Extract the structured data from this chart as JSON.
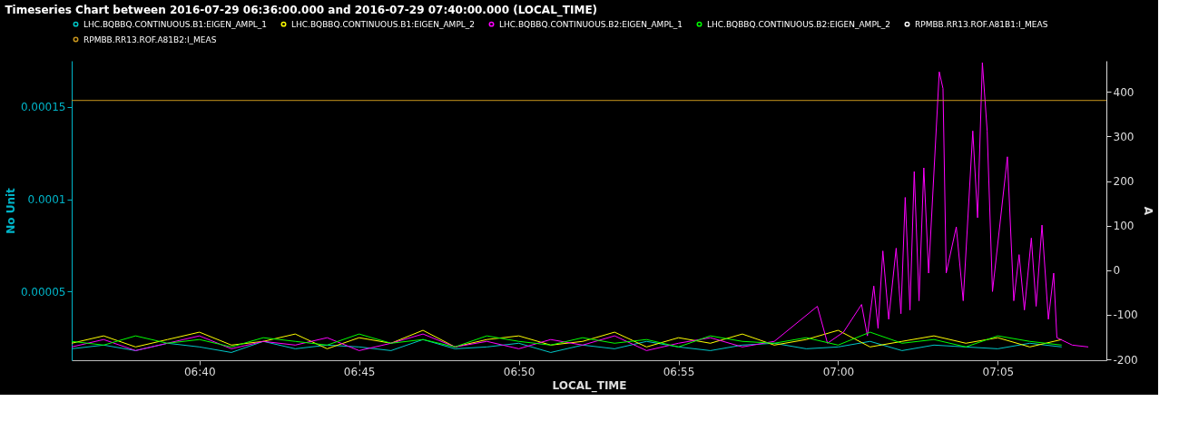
{
  "chart_data": {
    "type": "line",
    "title": "Timeseries Chart between 2016-07-29 06:36:00.000 and 2016-07-29 07:40:00.000 (LOCAL_TIME)",
    "xlabel": "LOCAL_TIME",
    "ylabel": "No Unit",
    "y2label": "A",
    "x": [
      "2016-07-29T06:36",
      "2016-07-29T06:37",
      "2016-07-29T06:38",
      "2016-07-29T06:39",
      "2016-07-29T06:40",
      "2016-07-29T06:41",
      "2016-07-29T06:42",
      "2016-07-29T06:43",
      "2016-07-29T06:44",
      "2016-07-29T06:45",
      "2016-07-29T06:46",
      "2016-07-29T06:47",
      "2016-07-29T06:48",
      "2016-07-29T06:49",
      "2016-07-29T06:50",
      "2016-07-29T06:51",
      "2016-07-29T06:52",
      "2016-07-29T06:53",
      "2016-07-29T06:54",
      "2016-07-29T06:55",
      "2016-07-29T06:56",
      "2016-07-29T06:57",
      "2016-07-29T06:58",
      "2016-07-29T06:59",
      "2016-07-29T07:00",
      "2016-07-29T07:01",
      "2016-07-29T07:02",
      "2016-07-29T07:03",
      "2016-07-29T07:04",
      "2016-07-29T07:05",
      "2016-07-29T07:06",
      "2016-07-29T07:07"
    ],
    "series": [
      {
        "name": "LHC.BQBBQ.CONTINUOUS.B1:EIGEN_AMPL_1",
        "color": "#00c8c8",
        "values": [
          1.9e-05,
          2.1e-05,
          1.8e-05,
          2.2e-05,
          2e-05,
          1.7e-05,
          2.3e-05,
          1.9e-05,
          2.1e-05,
          2e-05,
          1.8e-05,
          2.4e-05,
          1.9e-05,
          2e-05,
          2.2e-05,
          1.7e-05,
          2.1e-05,
          1.9e-05,
          2.3e-05,
          2e-05,
          1.8e-05,
          2.1e-05,
          2.2e-05,
          1.9e-05,
          2e-05,
          2.3e-05,
          1.8e-05,
          2.1e-05,
          2e-05,
          1.9e-05,
          2.2e-05,
          2e-05
        ]
      },
      {
        "name": "LHC.BQBBQ.CONTINUOUS.B1:EIGEN_AMPL_2",
        "color": "#ffff00",
        "values": [
          2.2e-05,
          2.6e-05,
          2e-05,
          2.4e-05,
          2.8e-05,
          2.1e-05,
          2.3e-05,
          2.7e-05,
          1.9e-05,
          2.5e-05,
          2.2e-05,
          2.9e-05,
          2e-05,
          2.4e-05,
          2.6e-05,
          2.1e-05,
          2.3e-05,
          2.8e-05,
          2e-05,
          2.5e-05,
          2.2e-05,
          2.7e-05,
          2.1e-05,
          2.4e-05,
          2.9e-05,
          2e-05,
          2.3e-05,
          2.6e-05,
          2.2e-05,
          2.5e-05,
          2e-05,
          2.4e-05
        ]
      },
      {
        "name": "LHC.BQBBQ.CONTINUOUS.B2:EIGEN_AMPL_1",
        "color": "#ff00ff",
        "x": [
          "2016-07-29T06:36",
          "2016-07-29T06:37",
          "2016-07-29T06:38",
          "2016-07-29T06:39",
          "2016-07-29T06:40",
          "2016-07-29T06:41",
          "2016-07-29T06:42",
          "2016-07-29T06:43",
          "2016-07-29T06:44",
          "2016-07-29T06:45",
          "2016-07-29T06:46",
          "2016-07-29T06:47",
          "2016-07-29T06:48",
          "2016-07-29T06:49",
          "2016-07-29T06:50",
          "2016-07-29T06:51",
          "2016-07-29T06:52",
          "2016-07-29T06:53",
          "2016-07-29T06:54",
          "2016-07-29T06:55",
          "2016-07-29T06:56",
          "2016-07-29T06:57",
          "2016-07-29T06:58",
          "2016-07-29T06:59:21",
          "2016-07-29T06:59:40",
          "2016-07-29T07:00:10",
          "2016-07-29T07:00:44",
          "2016-07-29T07:00:55",
          "2016-07-29T07:01:07",
          "2016-07-29T07:01:15",
          "2016-07-29T07:01:24",
          "2016-07-29T07:01:35",
          "2016-07-29T07:01:49",
          "2016-07-29T07:01:58",
          "2016-07-29T07:02:06",
          "2016-07-29T07:02:15",
          "2016-07-29T07:02:23",
          "2016-07-29T07:02:32",
          "2016-07-29T07:02:41",
          "2016-07-29T07:02:50",
          "2016-07-29T07:03:10",
          "2016-07-29T07:03:17",
          "2016-07-29T07:03:23",
          "2016-07-29T07:03:42",
          "2016-07-29T07:03:55",
          "2016-07-29T07:04:13",
          "2016-07-29T07:04:22",
          "2016-07-29T07:04:31",
          "2016-07-29T07:04:40",
          "2016-07-29T07:04:50",
          "2016-07-29T07:05:18",
          "2016-07-29T07:05:30",
          "2016-07-29T07:05:40",
          "2016-07-29T07:05:50",
          "2016-07-29T07:06:03",
          "2016-07-29T07:06:12",
          "2016-07-29T07:06:23",
          "2016-07-29T07:06:35",
          "2016-07-29T07:06:45",
          "2016-07-29T07:06:51",
          "2016-07-29T07:07:20",
          "2016-07-29T07:07:50"
        ],
        "values": [
          2e-05,
          2.4e-05,
          1.8e-05,
          2.2e-05,
          2.6e-05,
          1.9e-05,
          2.3e-05,
          2.1e-05,
          2.5e-05,
          1.8e-05,
          2.2e-05,
          2.7e-05,
          2e-05,
          2.3e-05,
          1.9e-05,
          2.4e-05,
          2.1e-05,
          2.6e-05,
          1.8e-05,
          2.2e-05,
          2.5e-05,
          2e-05,
          2.3e-05,
          4.2e-05,
          2.2e-05,
          2.8e-05,
          4.3e-05,
          2.6e-05,
          5.3e-05,
          3e-05,
          7.2e-05,
          3.5e-05,
          7.35e-05,
          3.8e-05,
          0.000101,
          4e-05,
          0.000115,
          4.5e-05,
          0.000117,
          6e-05,
          0.000169,
          0.00016,
          6e-05,
          8.5e-05,
          4.5e-05,
          0.000137,
          9e-05,
          0.000174,
          0.000137,
          5e-05,
          0.000123,
          4.5e-05,
          7e-05,
          4e-05,
          7.9e-05,
          4.2e-05,
          8.6e-05,
          3.5e-05,
          6e-05,
          2.5e-05,
          2.1e-05,
          2e-05
        ]
      },
      {
        "name": "LHC.BQBBQ.CONTINUOUS.B2:EIGEN_AMPL_2",
        "color": "#00ff00",
        "values": [
          2.3e-05,
          2.1e-05,
          2.6e-05,
          2.2e-05,
          2.4e-05,
          2e-05,
          2.5e-05,
          2.3e-05,
          2.1e-05,
          2.7e-05,
          2.2e-05,
          2.4e-05,
          2e-05,
          2.6e-05,
          2.3e-05,
          2.1e-05,
          2.5e-05,
          2.2e-05,
          2.4e-05,
          2e-05,
          2.6e-05,
          2.3e-05,
          2.2e-05,
          2.5e-05,
          2.1e-05,
          2.8e-05,
          2.2e-05,
          2.4e-05,
          2e-05,
          2.6e-05,
          2.3e-05,
          2.1e-05
        ]
      },
      {
        "name": "RPMBB.RR13.ROF.A81B1:I_MEAS",
        "color": "#ffffff",
        "axis": "y2",
        "values": [
          null,
          null,
          null,
          null,
          null,
          null,
          null,
          null,
          null,
          null,
          null,
          null,
          null,
          null,
          null,
          null,
          null,
          null,
          null,
          null,
          null,
          null,
          null,
          null,
          null,
          null,
          null,
          null,
          null,
          null,
          null,
          null
        ]
      },
      {
        "name": "RPMBB.RR13.ROF.A81B2:I_MEAS",
        "color": "#c8961e",
        "axis": "y2",
        "x": [
          "2016-07-29T06:36",
          "2016-07-29T07:08:24"
        ],
        "values": [
          381,
          381
        ]
      }
    ],
    "xlim": [
      "2016-07-29T06:36",
      "2016-07-29T07:08:24"
    ],
    "xticks": [
      {
        "value": "2016-07-29T06:40",
        "label": "06:40"
      },
      {
        "value": "2016-07-29T06:45",
        "label": "06:45"
      },
      {
        "value": "2016-07-29T06:50",
        "label": "06:50"
      },
      {
        "value": "2016-07-29T06:55",
        "label": "06:55"
      },
      {
        "value": "2016-07-29T07:00",
        "label": "07:00"
      },
      {
        "value": "2016-07-29T07:05",
        "label": "07:05"
      }
    ],
    "ylim": [
      1.28e-05,
      0.000175
    ],
    "yticks": [
      {
        "value": 5e-05,
        "label": "0.00005"
      },
      {
        "value": 0.0001,
        "label": "0.0001"
      },
      {
        "value": 0.00015,
        "label": "0.00015"
      }
    ],
    "y2lim": [
      -202,
      470
    ],
    "y2ticks": [
      -200,
      -100,
      0,
      100,
      200,
      300,
      400
    ],
    "legend": "top",
    "grid": false,
    "marker": "none",
    "line_style": "solid"
  }
}
